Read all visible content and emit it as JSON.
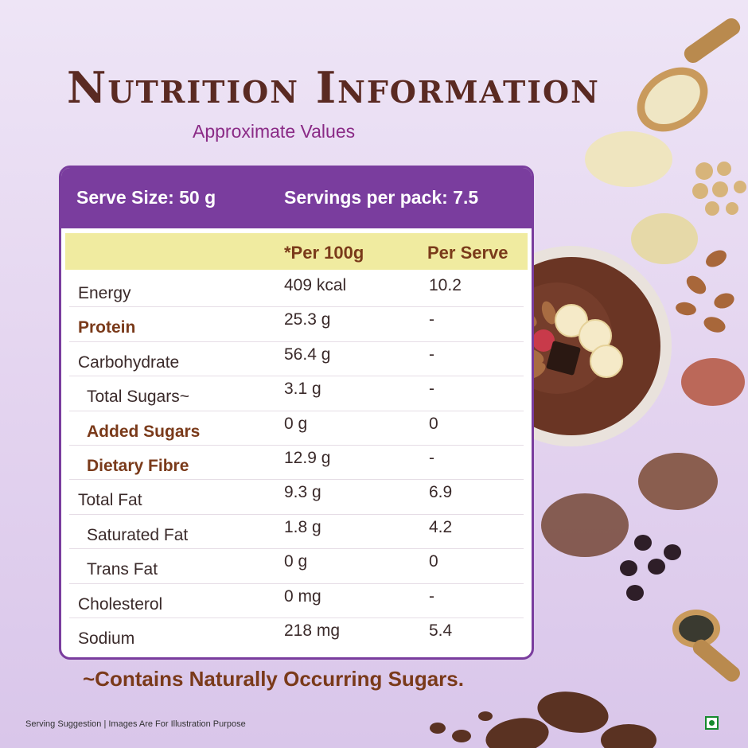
{
  "title": "Nutrition Information",
  "subtitle": "Approximate Values",
  "card": {
    "serve_size": "Serve Size: 50 g",
    "servings": "Servings per pack: 7.5",
    "col_per100": "*Per 100g",
    "col_serve": "Per Serve"
  },
  "rows": [
    {
      "name": "Energy",
      "per100": "409 kcal",
      "serve": "10.2"
    },
    {
      "name": "Protein",
      "per100": "25.3 g",
      "serve": "-"
    },
    {
      "name": "Carbohydrate",
      "per100": "56.4 g",
      "serve": "-"
    },
    {
      "name": "Total Sugars~",
      "per100": "3.1 g",
      "serve": "-"
    },
    {
      "name": "Added Sugars",
      "per100": "0 g",
      "serve": "0"
    },
    {
      "name": "Dietary Fibre",
      "per100": "12.9 g",
      "serve": "-"
    },
    {
      "name": "Total Fat",
      "per100": "9.3 g",
      "serve": "6.9"
    },
    {
      "name": "Saturated Fat",
      "per100": "1.8 g",
      "serve": "4.2"
    },
    {
      "name": "Trans Fat",
      "per100": "0 g",
      "serve": "0"
    },
    {
      "name": "Cholesterol",
      "per100": "0 mg",
      "serve": "-"
    },
    {
      "name": "Sodium",
      "per100": "218 mg",
      "serve": "5.4"
    }
  ],
  "footnote": "~Contains Naturally Occurring Sugars.",
  "caption": "Serving Suggestion | Images Are For Illustration Purpose",
  "colors": {
    "purple": "#7a3d9e",
    "brown": "#5a2a22",
    "header_yellow": "#f0eba0",
    "veg_green": "#168a2e"
  },
  "icons": [
    "veg-mark-icon"
  ]
}
